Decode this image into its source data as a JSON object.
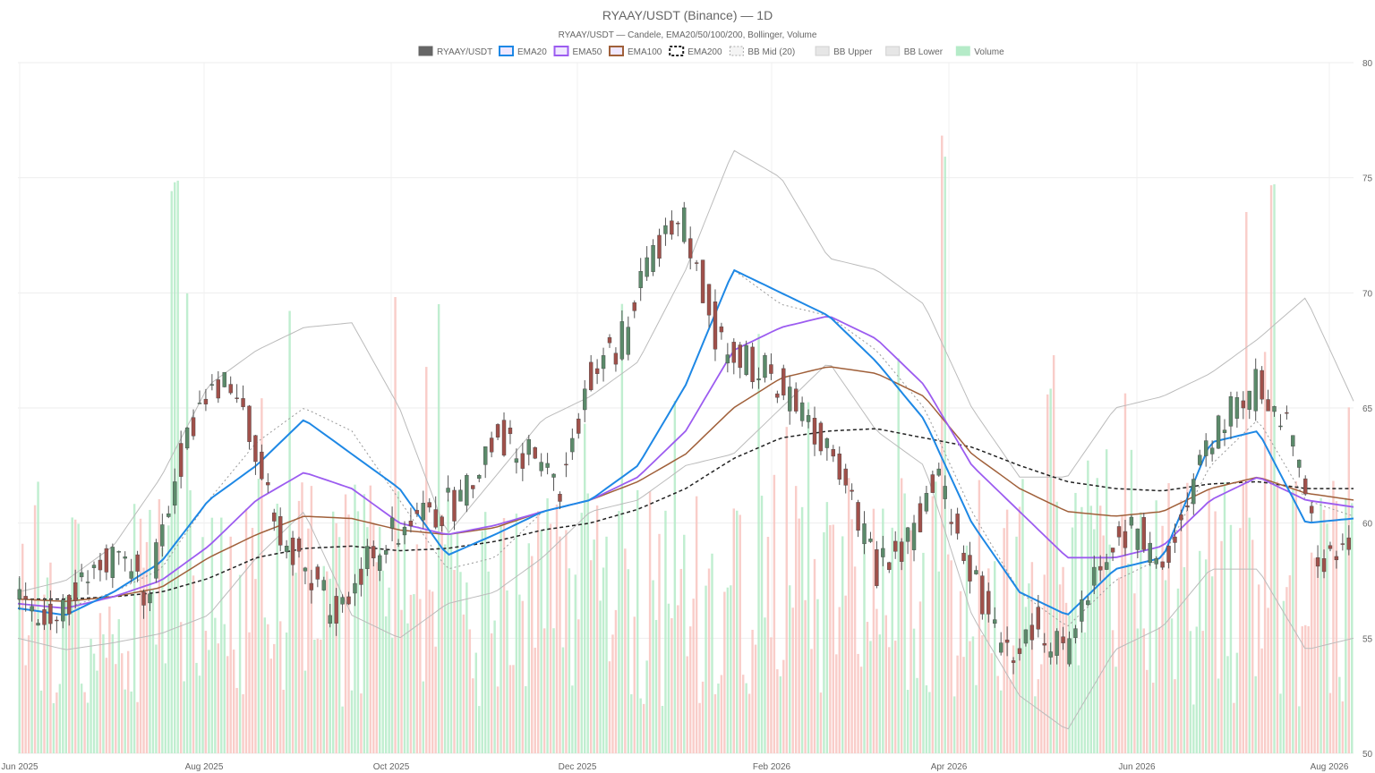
{
  "chart_data": {
    "type": "candlestick",
    "title": "RYAAY/USDT (Binance) — 1D",
    "subtitle": "RYAAY/USDT — Candele, EMA20/50/100/200, Bollinger, Volume",
    "legend": [
      {
        "label": "RYAAY/USDT",
        "color": "#666666",
        "kind": "solid"
      },
      {
        "label": "EMA20",
        "color": "#1e88e5",
        "kind": "line"
      },
      {
        "label": "EMA50",
        "color": "#9c5cf0",
        "kind": "line"
      },
      {
        "label": "EMA100",
        "color": "#a0603a",
        "kind": "line"
      },
      {
        "label": "EMA200",
        "color": "#222222",
        "kind": "dash"
      },
      {
        "label": "BB Mid (20)",
        "color": "#aaaaaa",
        "kind": "dotted"
      },
      {
        "label": "BB Upper",
        "color": "#bbbbbb",
        "kind": "light"
      },
      {
        "label": "BB Lower",
        "color": "#bbbbbb",
        "kind": "light"
      },
      {
        "label": "Volume",
        "color": "#b5ebc8",
        "kind": "solid"
      }
    ],
    "x_ticks": [
      "Jun 2025",
      "Aug 2025",
      "Oct 2025",
      "Dec 2025",
      "Feb 2026",
      "Apr 2026",
      "Jun 2026",
      "Aug 2026"
    ],
    "y_ticks": [
      50,
      55,
      60,
      65,
      70,
      75,
      80
    ],
    "ylim": [
      50,
      80
    ],
    "grid": true,
    "legend_position": "top-center",
    "colors": {
      "up": "#5b8a6a",
      "down": "#a0504a",
      "ema20": "#1e88e5",
      "ema50": "#9c5cf0",
      "ema100": "#a0603a",
      "ema200": "#222222",
      "bb": "#bbbbbb",
      "vol_up": "#b5ebc8",
      "vol_down": "#f8c4c0"
    },
    "price_path": {
      "dates": [
        "2025-06-01",
        "2025-06-15",
        "2025-07-01",
        "2025-07-10",
        "2025-07-20",
        "2025-08-01",
        "2025-08-15",
        "2025-08-25",
        "2025-09-05",
        "2025-09-15",
        "2025-09-25",
        "2025-10-01",
        "2025-10-15",
        "2025-11-01",
        "2025-11-10",
        "2025-11-20",
        "2025-11-28",
        "2025-12-05",
        "2025-12-15",
        "2025-12-25",
        "2026-01-05",
        "2026-01-15",
        "2026-01-25",
        "2026-02-05",
        "2026-02-15",
        "2026-02-25",
        "2026-03-05",
        "2026-03-15",
        "2026-03-25",
        "2026-04-05",
        "2026-04-15",
        "2026-04-25",
        "2026-05-05",
        "2026-05-15",
        "2026-05-25",
        "2026-06-05",
        "2026-06-15",
        "2026-06-25",
        "2026-07-05",
        "2026-07-15",
        "2026-07-25",
        "2026-08-05",
        "2026-08-12"
      ],
      "closes": [
        56.5,
        55.5,
        57.5,
        58.5,
        57,
        62.5,
        66,
        65.5,
        60,
        58,
        56,
        58.5,
        60,
        60.5,
        61,
        64,
        63,
        61.5,
        66.5,
        68,
        72,
        73,
        68,
        67,
        66,
        64,
        62,
        58,
        59,
        62,
        58,
        54,
        55.5,
        54.5,
        58,
        60,
        58,
        62,
        64.5,
        66,
        64,
        58,
        59.5
      ]
    },
    "ema_anchors": {
      "ema20": [
        56.3,
        56,
        57,
        58.3,
        61,
        62.5,
        64.5,
        63,
        61.5,
        58.6,
        59.5,
        60.5,
        61,
        62.5,
        66,
        71,
        70,
        69,
        67,
        64.5,
        60,
        57,
        56,
        58,
        58.5,
        63.5,
        64,
        60,
        60.2
      ],
      "ema50": [
        56.5,
        56.3,
        56.8,
        57.5,
        59,
        61,
        62.2,
        61.5,
        60,
        59.5,
        59.9,
        60.5,
        61,
        62,
        64,
        67.5,
        68.5,
        69,
        68,
        66,
        62.5,
        60.5,
        58.5,
        58.5,
        59,
        61,
        62,
        61,
        60.7
      ],
      "ema100": [
        56.7,
        56.6,
        56.8,
        57.2,
        58.5,
        59.5,
        60.3,
        60.2,
        59.7,
        59.5,
        59.8,
        60.5,
        61,
        61.8,
        63,
        65,
        66.3,
        66.8,
        66.5,
        65.5,
        63,
        61.5,
        60.5,
        60.3,
        60.5,
        61.5,
        62,
        61.3,
        61
      ],
      "ema200": [
        56.7,
        56.7,
        56.8,
        57,
        57.6,
        58.5,
        58.9,
        59,
        58.8,
        58.9,
        59.2,
        59.7,
        60,
        60.6,
        61.5,
        62.8,
        63.7,
        64,
        64.1,
        63.7,
        63.3,
        62.5,
        61.8,
        61.5,
        61.4,
        61.7,
        61.8,
        61.5,
        61.5
      ],
      "bb_mid": [
        56.5,
        56.3,
        57,
        58,
        61,
        63.5,
        65,
        64,
        61,
        58,
        58.5,
        60.5,
        61,
        62.5,
        66,
        71,
        69.5,
        69,
        67.5,
        65,
        60.5,
        57,
        55.5,
        57.5,
        58.5,
        62.5,
        64.5,
        61,
        60.3
      ],
      "bb_upper": [
        57,
        57.5,
        59,
        62,
        66,
        67.5,
        68.5,
        68.7,
        65,
        59.5,
        62,
        64.5,
        65.5,
        67,
        71,
        76.2,
        75,
        71.5,
        71,
        69.5,
        65,
        62,
        62,
        65,
        65.5,
        66.5,
        68,
        69.8,
        65.3
      ],
      "bb_lower": [
        55,
        54.5,
        54.8,
        55.2,
        56,
        58.5,
        60.5,
        56,
        55,
        56.5,
        57,
        58.5,
        60.5,
        61,
        62.5,
        63,
        65,
        67,
        64,
        62.5,
        56,
        52.5,
        51,
        54.5,
        55.5,
        58,
        58,
        54.5,
        55
      ]
    },
    "volume_peaks": {
      "labels": [
        "Jul 2025",
        "Feb 2026",
        "Mar 2026",
        "Apr 2026",
        "May 2026",
        "Jul 2026"
      ],
      "values": [
        75,
        72,
        68,
        77.5,
        75,
        76.5
      ]
    }
  }
}
